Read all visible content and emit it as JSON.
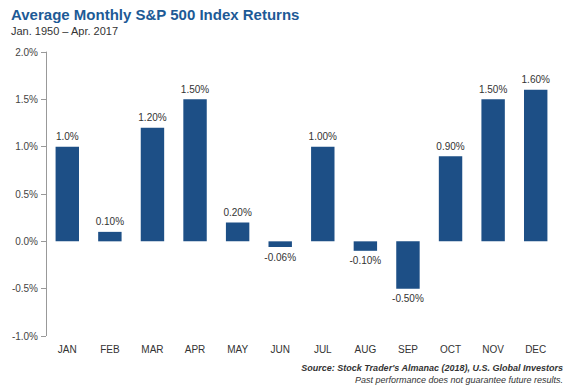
{
  "chart_data": {
    "type": "bar",
    "title": "Average Monthly S&P 500 Index Returns",
    "subtitle": "Jan. 1950 – Apr. 2017",
    "categories": [
      "JAN",
      "FEB",
      "MAR",
      "APR",
      "MAY",
      "JUN",
      "JUL",
      "AUG",
      "SEP",
      "OCT",
      "NOV",
      "DEC"
    ],
    "values": [
      1.0,
      0.1,
      1.2,
      1.5,
      0.2,
      -0.06,
      1.0,
      -0.1,
      -0.5,
      0.9,
      1.5,
      1.6
    ],
    "value_labels": [
      "1.0%",
      "0.10%",
      "1.20%",
      "1.50%",
      "0.20%",
      "-0.06%",
      "1.00%",
      "-0.10%",
      "-0.50%",
      "0.90%",
      "1.50%",
      "1.60%"
    ],
    "data_labels": true,
    "color": "#1d4f86",
    "ylim": [
      -1.0,
      2.0
    ],
    "yticks": [
      {
        "value": -1.0,
        "label": "-1.0%"
      },
      {
        "value": -0.5,
        "label": "-0.5%"
      },
      {
        "value": 0,
        "label": "0.0%"
      },
      {
        "value": 0.5,
        "label": "0.5%"
      },
      {
        "value": 1.0,
        "label": "1.0%"
      },
      {
        "value": 1.5,
        "label": "1.5%"
      },
      {
        "value": 2.0,
        "label": "2.0%"
      }
    ],
    "grid": false,
    "annotations": [
      "Source: Stock Trader's Almanac (2018), U.S. Global Investors",
      "Past performance does not guarantee future results."
    ]
  }
}
